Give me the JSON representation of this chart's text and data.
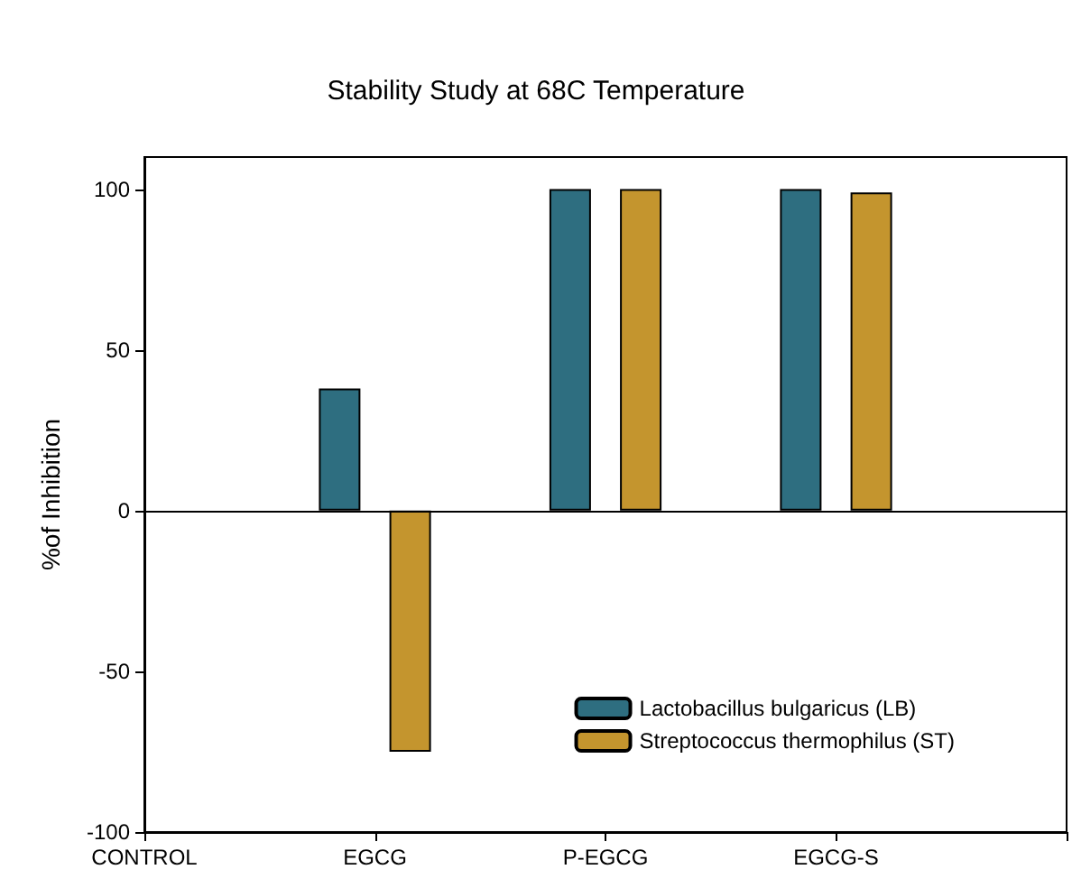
{
  "chart_data": {
    "type": "bar",
    "title": "Stability Study at 68C Temperature",
    "ylabel": "%of Inhibition",
    "categories": [
      "CONTROL",
      "EGCG",
      "P-EGCG",
      "EGCG-S",
      null
    ],
    "series": [
      {
        "name": "Lactobacillus bulgaricus (LB)",
        "color": "#2e6e80",
        "values": [
          null,
          38,
          100,
          100,
          null
        ]
      },
      {
        "name": "Streptococcus thermophilus (ST)",
        "color": "#c4952e",
        "values": [
          null,
          -75,
          100,
          99,
          null
        ]
      }
    ],
    "ylim": [
      -100,
      110
    ],
    "yticks": [
      -100,
      -50,
      0,
      50,
      100
    ],
    "grid": false,
    "legend": "bottom right",
    "ref_lines": [
      {
        "axis": "y",
        "value": 0,
        "label": null
      }
    ]
  }
}
